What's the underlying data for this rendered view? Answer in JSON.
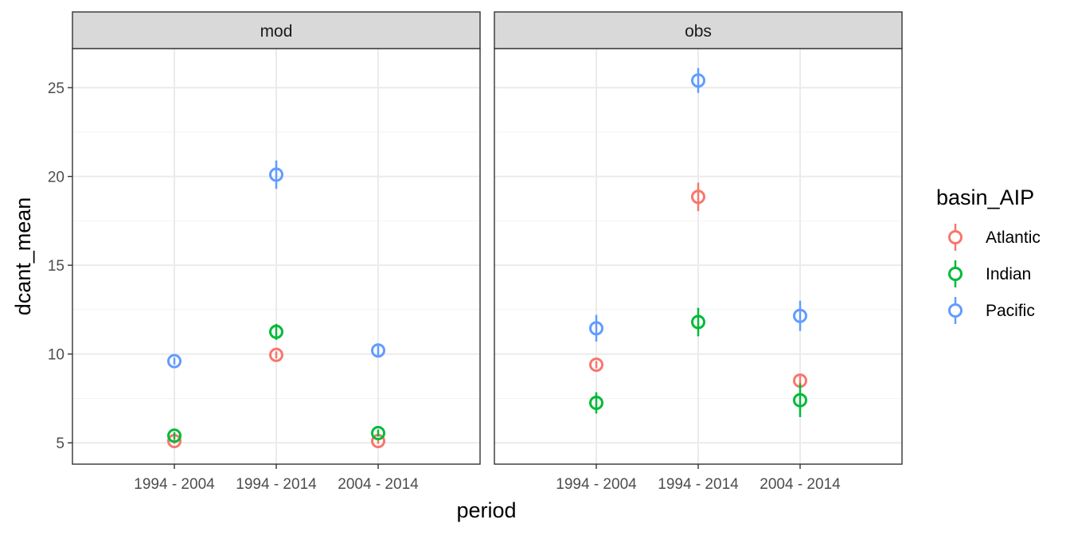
{
  "chart_data": {
    "type": "scatter",
    "xlabel": "period",
    "ylabel": "dcant_mean",
    "categories": [
      "1994 - 2004",
      "1994 - 2014",
      "2004 - 2014"
    ],
    "ylim": [
      3.8,
      27.2
    ],
    "yticks": [
      5,
      10,
      15,
      20,
      25
    ],
    "grid": true,
    "legend": {
      "title": "basin_AIP",
      "position": "right",
      "entries": [
        "Atlantic",
        "Indian",
        "Pacific"
      ]
    },
    "colors": {
      "Atlantic": "#F8766D",
      "Indian": "#00BA38",
      "Pacific": "#619CFF"
    },
    "panels": [
      {
        "label": "mod",
        "series": [
          {
            "name": "Atlantic",
            "values": [
              5.1,
              9.95,
              5.1
            ],
            "errors": [
              0.15,
              0.2,
              0.15
            ]
          },
          {
            "name": "Indian",
            "values": [
              5.4,
              11.25,
              5.55
            ],
            "errors": [
              0.2,
              0.45,
              0.2
            ]
          },
          {
            "name": "Pacific",
            "values": [
              9.6,
              20.1,
              10.2
            ],
            "errors": [
              0.2,
              0.8,
              0.35
            ]
          }
        ]
      },
      {
        "label": "obs",
        "series": [
          {
            "name": "Atlantic",
            "values": [
              9.4,
              18.85,
              8.5
            ],
            "errors": [
              0.2,
              0.8,
              0.35
            ]
          },
          {
            "name": "Indian",
            "values": [
              7.25,
              11.8,
              7.4
            ],
            "errors": [
              0.6,
              0.8,
              0.95
            ]
          },
          {
            "name": "Pacific",
            "values": [
              11.45,
              25.4,
              12.15
            ],
            "errors": [
              0.75,
              0.7,
              0.85
            ]
          }
        ]
      }
    ]
  }
}
